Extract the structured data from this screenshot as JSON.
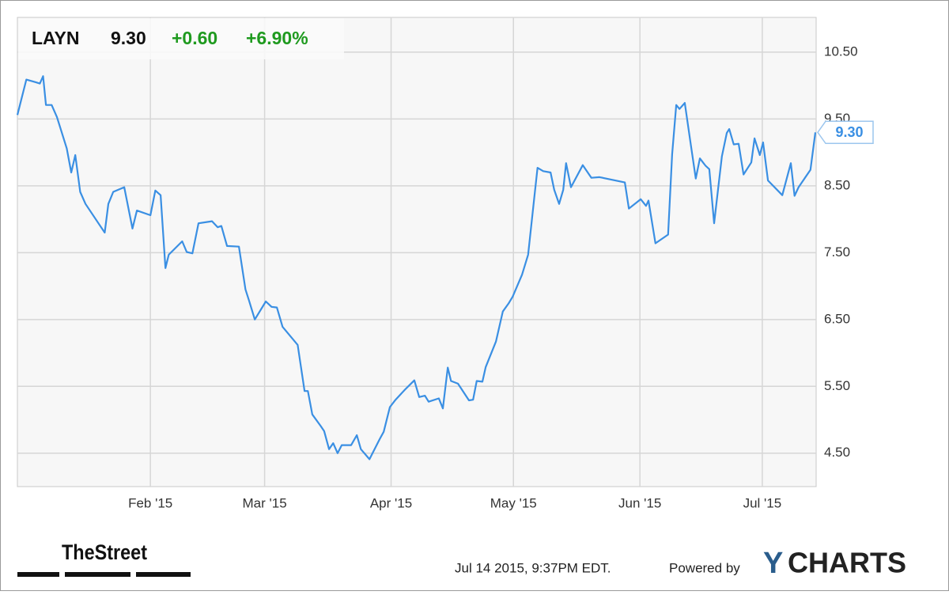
{
  "chart_data": {
    "type": "line",
    "header": {
      "ticker": "LAYN",
      "price": "9.30",
      "change": "+0.60",
      "change_pct": "+6.90%"
    },
    "color": "#3a8fe3",
    "change_color": "#1f9a1f",
    "grid": true,
    "x": [
      -1.6,
      0.6,
      2.9,
      3.9,
      4.7,
      5.4,
      6.8,
      8.1,
      10.5,
      11.6,
      12.6,
      13.8,
      15.1,
      19.8,
      20.7,
      21.9,
      24.6,
      26.6,
      27.7,
      31.0,
      32.2,
      33.5,
      34.7,
      35.5,
      38.8,
      39.9,
      41.3,
      42.8,
      46.1,
      47.5,
      48.4,
      49.8,
      52.7,
      54.3,
      55.2,
      56.6,
      59.3,
      60.7,
      62.0,
      63.4,
      67.1,
      68.8,
      69.6,
      70.7,
      72.7,
      73.6,
      74.8,
      75.8,
      76.9,
      77.9,
      80.2,
      81.6,
      82.6,
      84.7,
      87.2,
      88.2,
      89.7,
      91.1,
      93.4,
      95.7,
      96.9,
      98.3,
      99.2,
      101.7,
      102.7,
      103.9,
      104.7,
      106.4,
      109.1,
      110.1,
      111.0,
      112.4,
      113.2,
      115.7,
      117.4,
      118.8,
      119.8,
      122.1,
      123.6,
      125.2,
      125.9,
      127.3,
      129.1,
      130.0,
      131.2,
      132.2,
      132.9,
      134.1,
      137.0,
      139.1,
      141.1,
      147.3,
      148.3,
      151.2,
      152.5,
      153.1,
      154.8,
      157.9,
      158.9,
      159.9,
      160.7,
      162.0,
      163.4,
      164.7,
      165.7,
      167.1,
      168.0,
      169.2,
      171.1,
      172.3,
      172.9,
      174.0,
      175.2,
      176.4,
      178.3,
      179.1,
      180.4,
      181.2,
      182.4,
      185.9,
      188.0,
      188.9,
      189.9,
      192.8,
      194.0
    ],
    "values": [
      9.56,
      10.09,
      10.05,
      10.03,
      10.14,
      9.71,
      9.71,
      9.53,
      9.06,
      8.7,
      8.96,
      8.41,
      8.23,
      7.8,
      8.23,
      8.41,
      8.48,
      7.86,
      8.13,
      8.06,
      8.43,
      8.36,
      7.27,
      7.47,
      7.67,
      7.51,
      7.49,
      7.94,
      7.97,
      7.88,
      7.9,
      7.6,
      7.59,
      6.95,
      6.78,
      6.5,
      6.77,
      6.69,
      6.68,
      6.39,
      6.12,
      5.43,
      5.43,
      5.08,
      4.91,
      4.83,
      4.56,
      4.65,
      4.5,
      4.62,
      4.62,
      4.77,
      4.56,
      4.41,
      4.71,
      4.82,
      5.19,
      5.3,
      5.45,
      5.59,
      5.34,
      5.36,
      5.27,
      5.32,
      5.17,
      5.78,
      5.58,
      5.54,
      5.29,
      5.3,
      5.58,
      5.57,
      5.79,
      6.17,
      6.62,
      6.74,
      6.84,
      7.17,
      7.47,
      8.38,
      8.77,
      8.72,
      8.7,
      8.44,
      8.23,
      8.44,
      8.84,
      8.48,
      8.81,
      8.62,
      8.63,
      8.55,
      8.16,
      8.3,
      8.2,
      8.28,
      7.64,
      7.77,
      8.97,
      9.71,
      9.65,
      9.74,
      9.15,
      8.61,
      8.91,
      8.8,
      8.75,
      7.94,
      8.94,
      9.29,
      9.35,
      9.12,
      9.13,
      8.67,
      8.85,
      9.21,
      8.96,
      9.15,
      8.58,
      8.36,
      8.84,
      8.35,
      8.48,
      8.74,
      9.3
    ],
    "end_label": "9.30",
    "xlim": [
      -1.6,
      194.2
    ],
    "xticks": [
      {
        "value": 31,
        "label": "Feb '15"
      },
      {
        "value": 59,
        "label": "Mar '15"
      },
      {
        "value": 90,
        "label": "Apr '15"
      },
      {
        "value": 120,
        "label": "May '15"
      },
      {
        "value": 151,
        "label": "Jun '15"
      },
      {
        "value": 181,
        "label": "Jul '15"
      }
    ],
    "ylim": [
      4.0,
      11.02
    ],
    "yticks": [
      {
        "value": 4.5,
        "label": "4.50"
      },
      {
        "value": 5.5,
        "label": "5.50"
      },
      {
        "value": 6.5,
        "label": "6.50"
      },
      {
        "value": 7.5,
        "label": "7.50"
      },
      {
        "value": 8.5,
        "label": "8.50"
      },
      {
        "value": 9.5,
        "label": "9.50"
      },
      {
        "value": 10.5,
        "label": "10.50"
      }
    ],
    "footer": {
      "source": "TheStreet",
      "timestamp": "Jul 14 2015, 9:37PM EDT.",
      "powered_by": "Powered by",
      "brand_initial": "Y",
      "brand_rest": "CHARTS"
    }
  }
}
